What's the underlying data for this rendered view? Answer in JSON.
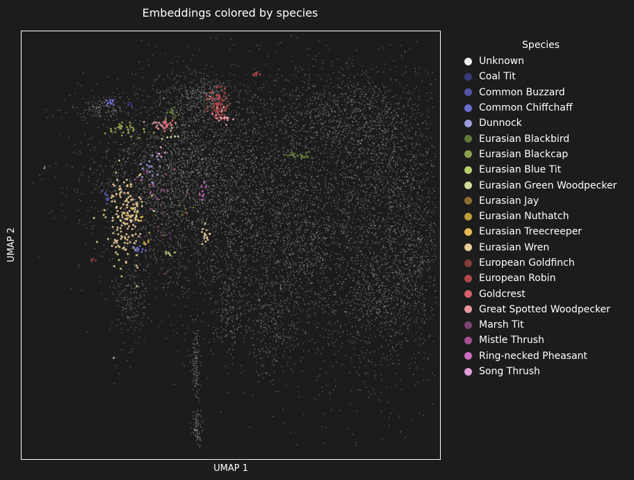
{
  "chart_data": {
    "type": "scatter",
    "title": "Embeddings colored by species",
    "xlabel": "UMAP 1",
    "ylabel": "UMAP 2",
    "xticks": [],
    "yticks": [],
    "grid": false,
    "legend_placement": "outside-right",
    "background_color": "#1c1c1c",
    "legend": {
      "title": "Species",
      "entries": [
        {
          "name": "Unknown",
          "color": "#eeeeee"
        },
        {
          "name": "Coal Tit",
          "color": "#393b79"
        },
        {
          "name": "Common Buzzard",
          "color": "#5254a3"
        },
        {
          "name": "Common Chiffchaff",
          "color": "#6b6ecf"
        },
        {
          "name": "Dunnock",
          "color": "#9c9ede"
        },
        {
          "name": "Eurasian Blackbird",
          "color": "#637939"
        },
        {
          "name": "Eurasian Blackcap",
          "color": "#8ca252"
        },
        {
          "name": "Eurasian Blue Tit",
          "color": "#b5cf6b"
        },
        {
          "name": "Eurasian Green Woodpecker",
          "color": "#cedb9c"
        },
        {
          "name": "Eurasian Jay",
          "color": "#8c6d31"
        },
        {
          "name": "Eurasian Nuthatch",
          "color": "#bd9e39"
        },
        {
          "name": "Eurasian Treecreeper",
          "color": "#e7ba52"
        },
        {
          "name": "Eurasian Wren",
          "color": "#e7cb94"
        },
        {
          "name": "European Goldfinch",
          "color": "#843c39"
        },
        {
          "name": "European Robin",
          "color": "#ad494a"
        },
        {
          "name": "Goldcrest",
          "color": "#d6616b"
        },
        {
          "name": "Great Spotted Woodpecker",
          "color": "#e7969c"
        },
        {
          "name": "Marsh Tit",
          "color": "#7b4173"
        },
        {
          "name": "Mistle Thrush",
          "color": "#a55194"
        },
        {
          "name": "Ring-necked Pheasant",
          "color": "#ce6dbd"
        },
        {
          "name": "Song Thrush",
          "color": "#de9ed6"
        }
      ]
    },
    "clusters": [
      {
        "species": "Unknown",
        "x": 0.47,
        "y": 0.68,
        "spread": [
          0.16,
          0.12
        ],
        "n": 2200
      },
      {
        "species": "Unknown",
        "x": 0.52,
        "y": 0.52,
        "spread": [
          0.12,
          0.13
        ],
        "n": 1400
      },
      {
        "species": "Unknown",
        "x": 0.39,
        "y": 0.68,
        "spread": [
          0.07,
          0.05
        ],
        "n": 500
      },
      {
        "species": "Unknown",
        "x": 0.82,
        "y": 0.55,
        "spread": [
          0.11,
          0.2
        ],
        "n": 2400
      },
      {
        "species": "Unknown",
        "x": 0.78,
        "y": 0.8,
        "spread": [
          0.08,
          0.05
        ],
        "n": 700
      },
      {
        "species": "Unknown",
        "x": 0.9,
        "y": 0.66,
        "spread": [
          0.05,
          0.09
        ],
        "n": 500
      },
      {
        "species": "Unknown",
        "x": 0.94,
        "y": 0.47,
        "spread": [
          0.04,
          0.08
        ],
        "n": 400
      },
      {
        "species": "Unknown",
        "x": 0.85,
        "y": 0.36,
        "spread": [
          0.05,
          0.05
        ],
        "n": 300
      },
      {
        "species": "Unknown",
        "x": 0.66,
        "y": 0.48,
        "spread": [
          0.04,
          0.07
        ],
        "n": 300
      },
      {
        "species": "Unknown",
        "x": 0.6,
        "y": 0.32,
        "spread": [
          0.03,
          0.06
        ],
        "n": 250
      },
      {
        "species": "Unknown",
        "x": 0.5,
        "y": 0.34,
        "spread": [
          0.02,
          0.05
        ],
        "n": 150
      },
      {
        "species": "Unknown",
        "x": 0.26,
        "y": 0.37,
        "spread": [
          0.02,
          0.05
        ],
        "n": 150
      },
      {
        "species": "Unknown",
        "x": 0.2,
        "y": 0.82,
        "spread": [
          0.03,
          0.015
        ],
        "n": 150
      },
      {
        "species": "Unknown",
        "x": 0.32,
        "y": 0.6,
        "spread": [
          0.06,
          0.08
        ],
        "n": 600
      },
      {
        "species": "Unknown",
        "x": 0.41,
        "y": 0.83,
        "spread": [
          0.05,
          0.04
        ],
        "n": 400
      },
      {
        "species": "Unknown",
        "x": 0.45,
        "y": 0.85,
        "spread": [
          0.02,
          0.015
        ],
        "n": 150
      },
      {
        "species": "Unknown",
        "x": 0.416,
        "y": 0.234,
        "spread": [
          0.005,
          0.045
        ],
        "n": 120
      },
      {
        "species": "Unknown",
        "x": 0.42,
        "y": 0.07,
        "spread": [
          0.006,
          0.02
        ],
        "n": 90
      },
      {
        "species": "Unknown",
        "x": 0.055,
        "y": 0.681,
        "spread": [
          0.002,
          0.002
        ],
        "n": 10
      },
      {
        "species": "Unknown",
        "x": 0.22,
        "y": 0.237,
        "spread": [
          0.002,
          0.002
        ],
        "n": 10
      },
      {
        "species": "Eurasian Wren",
        "x": 0.25,
        "y": 0.56,
        "spread": [
          0.022,
          0.05
        ],
        "n": 170
      },
      {
        "species": "Eurasian Wren",
        "x": 0.44,
        "y": 0.52,
        "spread": [
          0.004,
          0.012
        ],
        "n": 15
      },
      {
        "species": "European Robin",
        "x": 0.47,
        "y": 0.83,
        "spread": [
          0.012,
          0.018
        ],
        "n": 70
      },
      {
        "species": "Great Spotted Woodpecker",
        "x": 0.34,
        "y": 0.78,
        "spread": [
          0.02,
          0.008
        ],
        "n": 25
      },
      {
        "species": "Great Spotted Woodpecker",
        "x": 0.48,
        "y": 0.8,
        "spread": [
          0.01,
          0.008
        ],
        "n": 20
      },
      {
        "species": "Eurasian Blackcap",
        "x": 0.25,
        "y": 0.77,
        "spread": [
          0.03,
          0.008
        ],
        "n": 35
      },
      {
        "species": "Eurasian Blackbird",
        "x": 0.66,
        "y": 0.71,
        "spread": [
          0.015,
          0.004
        ],
        "n": 25
      },
      {
        "species": "Eurasian Blackbird",
        "x": 0.36,
        "y": 0.81,
        "spread": [
          0.006,
          0.006
        ],
        "n": 15
      },
      {
        "species": "Common Chiffchaff",
        "x": 0.21,
        "y": 0.835,
        "spread": [
          0.006,
          0.004
        ],
        "n": 12
      },
      {
        "species": "Common Chiffchaff",
        "x": 0.28,
        "y": 0.49,
        "spread": [
          0.01,
          0.006
        ],
        "n": 10
      },
      {
        "species": "Common Buzzard",
        "x": 0.2,
        "y": 0.61,
        "spread": [
          0.004,
          0.01
        ],
        "n": 10
      },
      {
        "species": "Dunnock",
        "x": 0.31,
        "y": 0.68,
        "spread": [
          0.02,
          0.02
        ],
        "n": 15
      },
      {
        "species": "Mistle Thrush",
        "x": 0.31,
        "y": 0.63,
        "spread": [
          0.03,
          0.03
        ],
        "n": 15
      },
      {
        "species": "Marsh Tit",
        "x": 0.33,
        "y": 0.55,
        "spread": [
          0.03,
          0.04
        ],
        "n": 10
      },
      {
        "species": "Goldcrest",
        "x": 0.35,
        "y": 0.78,
        "spread": [
          0.01,
          0.008
        ],
        "n": 12
      },
      {
        "species": "European Goldfinch",
        "x": 0.17,
        "y": 0.465,
        "spread": [
          0.003,
          0.003
        ],
        "n": 6
      },
      {
        "species": "European Robin",
        "x": 0.56,
        "y": 0.9,
        "spread": [
          0.005,
          0.004
        ],
        "n": 6
      },
      {
        "species": "Eurasian Blue Tit",
        "x": 0.35,
        "y": 0.48,
        "spread": [
          0.006,
          0.004
        ],
        "n": 6
      },
      {
        "species": "Ring-necked Pheasant",
        "x": 0.43,
        "y": 0.62,
        "spread": [
          0.01,
          0.01
        ],
        "n": 8
      },
      {
        "species": "Coal Tit",
        "x": 0.26,
        "y": 0.83,
        "spread": [
          0.005,
          0.004
        ],
        "n": 6
      },
      {
        "species": "Eurasian Green Woodpecker",
        "x": 0.35,
        "y": 0.75,
        "spread": [
          0.01,
          0.01
        ],
        "n": 6
      },
      {
        "species": "Eurasian Jay",
        "x": 0.39,
        "y": 0.58,
        "spread": [
          0.01,
          0.01
        ],
        "n": 5
      },
      {
        "species": "Song Thrush",
        "x": 0.34,
        "y": 0.72,
        "spread": [
          0.01,
          0.01
        ],
        "n": 6
      },
      {
        "species": "Eurasian Nuthatch",
        "x": 0.3,
        "y": 0.52,
        "spread": [
          0.01,
          0.01
        ],
        "n": 5
      },
      {
        "species": "Eurasian Treecreeper",
        "x": 0.27,
        "y": 0.57,
        "spread": [
          0.01,
          0.015
        ],
        "n": 8
      }
    ]
  }
}
